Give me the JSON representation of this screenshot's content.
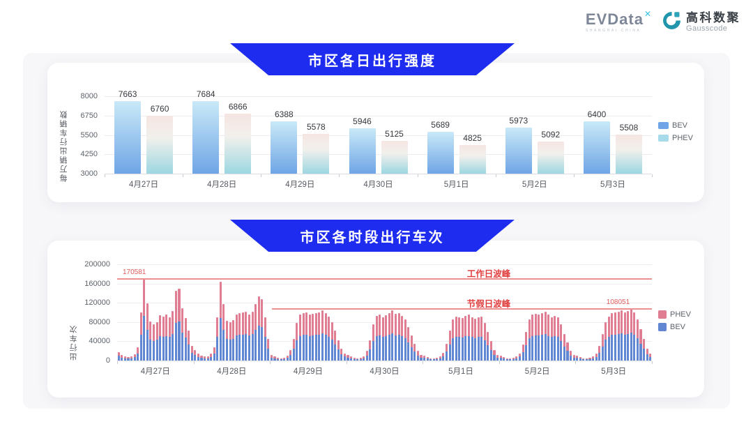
{
  "header": {
    "evdata": {
      "wordmark": "EVData",
      "superscript": "✕",
      "subtext": "SHANGHAI CHINA"
    },
    "gausscode": {
      "name_cn": "高科数聚",
      "name_en": "Gausscode"
    }
  },
  "colors": {
    "banner_blue": "#1e2cf0",
    "daily_bev_top": "#c9e9f7",
    "daily_bev_bottom": "#6fa5e6",
    "daily_phev_top": "#f5e5e2",
    "daily_phev_mid": "#f2f0ec",
    "daily_phev_bottom": "#9cd7e1",
    "daily_legend_bev": "#6fa5e6",
    "daily_legend_phev": "#a7dbe9",
    "hourly_phev": "#e07d93",
    "hourly_bev": "#6187d3",
    "annotation_line": "#ee9090",
    "annotation_text": "#e23d3d",
    "annotation_value": "#e05c5c",
    "gausscode_teal": "#2095ac",
    "evdata_cyan": "#38c4e6"
  },
  "chart_data": [
    {
      "id": "daily_intensity",
      "type": "bar",
      "title": "市区各日出行强度",
      "ylabel": "每万辆出行车辆数",
      "ylim": [
        3000,
        8000
      ],
      "yticks": [
        3000,
        4250,
        5500,
        6750,
        8000
      ],
      "grid": true,
      "legend_position": "right",
      "legend": [
        "BEV",
        "PHEV"
      ],
      "categories": [
        "4月27日",
        "4月28日",
        "4月29日",
        "4月30日",
        "5月1日",
        "5月2日",
        "5月3日"
      ],
      "series": [
        {
          "name": "BEV",
          "values": [
            7663,
            7684,
            6388,
            5946,
            5689,
            5973,
            6400
          ]
        },
        {
          "name": "PHEV",
          "values": [
            6760,
            6866,
            5578,
            5125,
            4825,
            5092,
            5508
          ]
        }
      ]
    },
    {
      "id": "hourly_trips",
      "type": "bar",
      "stacked": true,
      "title": "市区各时段出行车次",
      "ylabel": "出行车次",
      "ylim": [
        0,
        200000
      ],
      "yticks": [
        0,
        40000,
        80000,
        120000,
        160000,
        200000
      ],
      "grid": true,
      "legend_position": "right",
      "legend": [
        "PHEV",
        "BEV"
      ],
      "unit_scale": 1000,
      "series_order": [
        "BEV",
        "PHEV"
      ],
      "annotations": {
        "workday": {
          "label": "工作日波峰",
          "value": 170581,
          "value_label": "170581",
          "line_start_frac": 0
        },
        "holiday": {
          "label": "节假日波峰",
          "value": 108051,
          "value_label": "108051",
          "line_start_frac": 0.29
        }
      },
      "days": [
        {
          "date": "4月27日",
          "bev": [
            9.7,
            6.5,
            4.9,
            3.8,
            4.3,
            7.0,
            14.6,
            54.0,
            92.1,
            64.3,
            43.7,
            41.0,
            43.2,
            50.8,
            49.7,
            51.3,
            48.6,
            55.6,
            78.3,
            80.5,
            58.3,
            47.5,
            33.5,
            16.2
          ],
          "phev": [
            8.3,
            5.5,
            4.1,
            3.2,
            3.7,
            6.0,
            12.4,
            46.0,
            78.481,
            54.7,
            37.3,
            35.0,
            36.8,
            43.2,
            42.3,
            43.7,
            41.4,
            47.4,
            66.7,
            68.5,
            49.7,
            40.5,
            28.5,
            13.8
          ]
        },
        {
          "date": "4月28日",
          "bev": [
            11.9,
            7.6,
            5.4,
            4.3,
            4.9,
            7.6,
            15.1,
            48.6,
            88.6,
            63.2,
            44.3,
            43.2,
            45.4,
            51.8,
            52.9,
            54.0,
            54.5,
            51.8,
            55.1,
            63.2,
            72.4,
            69.1,
            48.6,
            24.3
          ],
          "phev": [
            10.1,
            6.4,
            4.6,
            3.7,
            4.1,
            6.4,
            12.9,
            41.4,
            75.4,
            53.8,
            37.7,
            36.8,
            38.6,
            44.2,
            45.1,
            46.0,
            46.5,
            44.2,
            46.9,
            53.8,
            61.6,
            58.9,
            41.4,
            20.7
          ]
        },
        {
          "date": "4月29日",
          "bev": [
            6.5,
            4.3,
            3.2,
            2.7,
            3.2,
            5.4,
            11.9,
            24.3,
            42.1,
            51.3,
            52.9,
            54.0,
            51.3,
            52.4,
            53.5,
            54.0,
            56.7,
            52.9,
            49.7,
            43.2,
            33.5,
            22.7,
            13.5,
            8.1
          ],
          "phev": [
            5.5,
            3.7,
            2.8,
            2.3,
            2.8,
            4.6,
            10.1,
            20.7,
            35.9,
            43.7,
            45.1,
            46.0,
            43.7,
            44.6,
            45.5,
            46.0,
            48.3,
            45.1,
            42.3,
            36.8,
            28.5,
            19.3,
            11.5,
            6.9
          ]
        },
        {
          "date": "4月30日",
          "bev": [
            5.9,
            4.3,
            3.2,
            2.7,
            3.2,
            4.9,
            10.8,
            22.7,
            40.5,
            50.2,
            51.8,
            48.6,
            50.8,
            52.9,
            56.7,
            52.4,
            53.5,
            50.2,
            45.9,
            37.8,
            28.1,
            18.9,
            10.8,
            6.5
          ],
          "phev": [
            5.1,
            3.7,
            2.8,
            2.3,
            2.8,
            4.1,
            9.2,
            19.3,
            34.5,
            42.8,
            44.2,
            41.4,
            43.2,
            45.1,
            48.3,
            44.6,
            45.5,
            42.8,
            39.1,
            32.2,
            23.9,
            16.1,
            9.2,
            5.5
          ]
        },
        {
          "date": "5月1日",
          "bev": [
            5.4,
            3.8,
            2.7,
            2.7,
            3.2,
            4.3,
            8.6,
            18.9,
            33.5,
            45.9,
            49.7,
            48.6,
            47.5,
            50.2,
            51.3,
            48.6,
            47.0,
            48.6,
            49.7,
            42.1,
            32.4,
            21.6,
            11.9,
            6.5
          ],
          "phev": [
            4.6,
            3.2,
            2.3,
            2.3,
            2.8,
            3.7,
            7.4,
            16.1,
            28.5,
            39.1,
            42.3,
            41.4,
            40.5,
            42.8,
            43.7,
            41.4,
            40.0,
            41.4,
            42.3,
            35.9,
            27.6,
            18.4,
            10.1,
            5.5
          ]
        },
        {
          "date": "5月2日",
          "bev": [
            5.4,
            3.8,
            2.7,
            2.7,
            3.2,
            4.3,
            8.1,
            17.8,
            32.4,
            45.9,
            51.3,
            52.4,
            51.8,
            52.9,
            55.1,
            51.3,
            48.6,
            50.2,
            48.6,
            40.5,
            29.7,
            20.5,
            10.8,
            6.5
          ],
          "phev": [
            4.6,
            3.2,
            2.3,
            2.3,
            2.8,
            3.7,
            6.9,
            15.2,
            27.6,
            39.1,
            43.7,
            44.6,
            44.2,
            45.1,
            46.9,
            43.7,
            41.4,
            42.8,
            41.4,
            34.5,
            25.3,
            17.5,
            9.2,
            5.5
          ]
        },
        {
          "date": "5月3日",
          "bev": [
            5.4,
            3.8,
            2.7,
            2.7,
            3.2,
            4.3,
            7.6,
            16.2,
            29.7,
            43.2,
            49.7,
            52.9,
            54.0,
            55.1,
            56.2,
            54.0,
            55.6,
            58.4,
            54.0,
            45.9,
            35.1,
            24.3,
            13.5,
            7.6
          ],
          "phev": [
            4.6,
            3.2,
            2.3,
            2.3,
            2.8,
            3.7,
            6.4,
            13.8,
            25.3,
            36.8,
            42.3,
            45.1,
            46.0,
            46.9,
            47.8,
            46.0,
            47.4,
            49.651,
            46.0,
            39.1,
            29.9,
            20.7,
            11.5,
            6.4
          ]
        }
      ]
    }
  ]
}
